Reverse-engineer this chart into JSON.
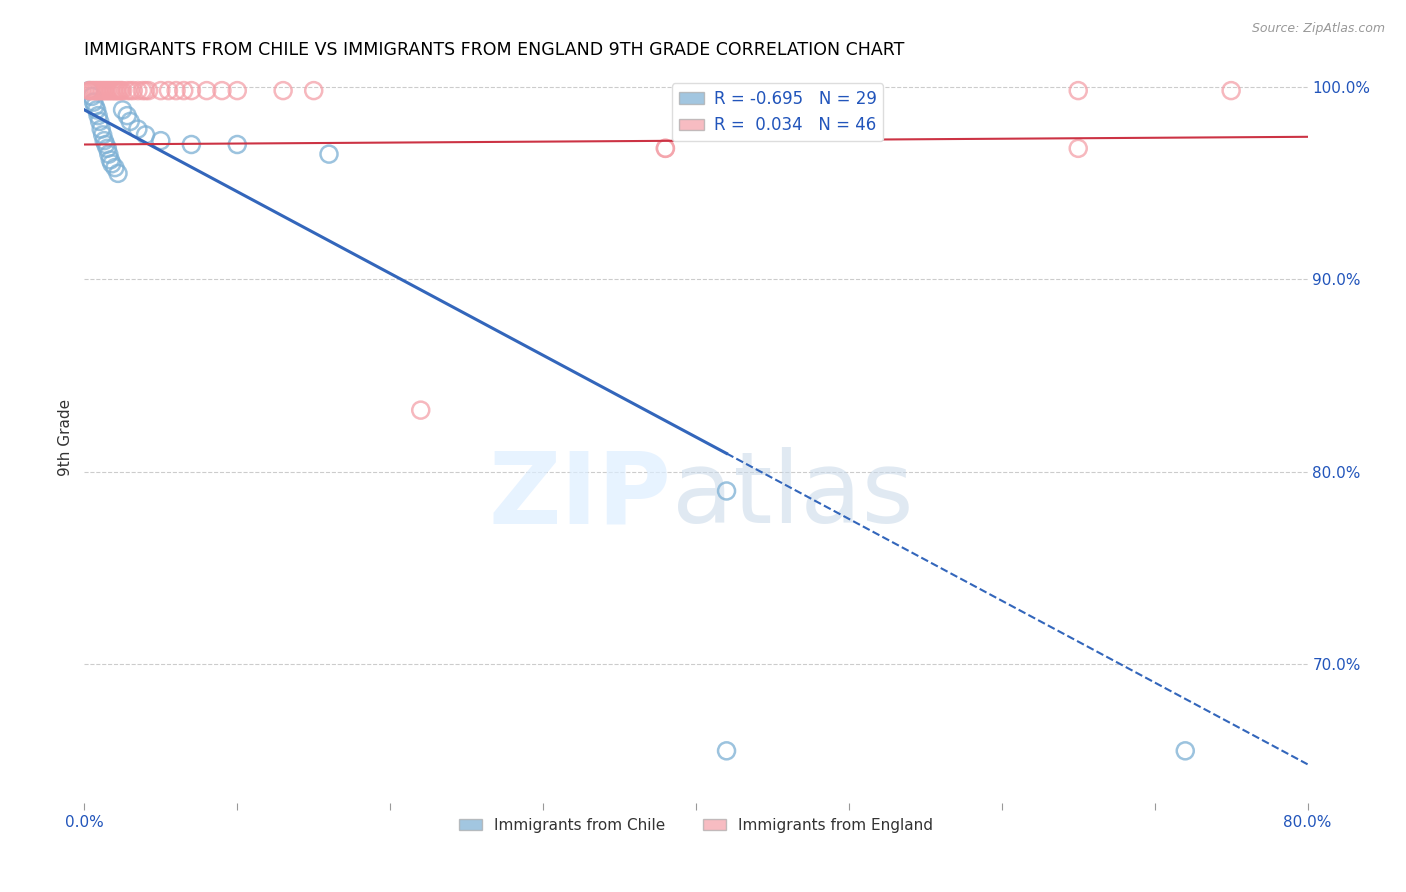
{
  "title": "IMMIGRANTS FROM CHILE VS IMMIGRANTS FROM ENGLAND 9TH GRADE CORRELATION CHART",
  "source": "Source: ZipAtlas.com",
  "ylabel_left": "9th Grade",
  "legend_label_blue": "Immigrants from Chile",
  "legend_label_pink": "Immigrants from England",
  "R_blue": -0.695,
  "N_blue": 29,
  "R_pink": 0.034,
  "N_pink": 46,
  "blue_color": "#7bafd4",
  "pink_color": "#f4a0a8",
  "trend_blue_color": "#3366bb",
  "trend_pink_color": "#cc3344",
  "watermark_zip": "ZIP",
  "watermark_atlas": "atlas",
  "xmin": 0.0,
  "xmax": 0.8,
  "ymin": 0.628,
  "ymax": 1.008,
  "right_yticks": [
    1.0,
    0.9,
    0.8,
    0.7
  ],
  "right_ytick_labels": [
    "100.0%",
    "90.0%",
    "80.0%",
    "70.0%"
  ],
  "xticks": [
    0.0,
    0.1,
    0.2,
    0.3,
    0.4,
    0.5,
    0.6,
    0.7,
    0.8
  ],
  "xtick_labels": [
    "0.0%",
    "",
    "",
    "",
    "",
    "",
    "",
    "",
    "80.0%"
  ],
  "blue_trend_x": [
    0.0,
    0.8
  ],
  "blue_trend_y": [
    0.988,
    0.648
  ],
  "blue_trend_solid_end_x": 0.42,
  "pink_trend_x": [
    0.0,
    0.8
  ],
  "pink_trend_y": [
    0.97,
    0.974
  ],
  "blue_scatter_x": [
    0.003,
    0.005,
    0.006,
    0.007,
    0.008,
    0.009,
    0.01,
    0.011,
    0.012,
    0.013,
    0.014,
    0.015,
    0.016,
    0.017,
    0.018,
    0.02,
    0.022,
    0.025,
    0.028,
    0.03,
    0.035,
    0.04,
    0.05,
    0.07,
    0.1,
    0.16,
    0.42,
    0.42,
    0.72
  ],
  "blue_scatter_y": [
    0.998,
    0.995,
    0.992,
    0.99,
    0.988,
    0.985,
    0.982,
    0.978,
    0.975,
    0.972,
    0.97,
    0.968,
    0.965,
    0.962,
    0.96,
    0.958,
    0.955,
    0.988,
    0.985,
    0.982,
    0.978,
    0.975,
    0.972,
    0.97,
    0.97,
    0.965,
    0.79,
    0.655,
    0.655
  ],
  "pink_scatter_x": [
    0.003,
    0.004,
    0.005,
    0.006,
    0.007,
    0.008,
    0.009,
    0.01,
    0.011,
    0.012,
    0.013,
    0.014,
    0.015,
    0.016,
    0.017,
    0.018,
    0.019,
    0.02,
    0.021,
    0.022,
    0.023,
    0.024,
    0.025,
    0.028,
    0.03,
    0.032,
    0.035,
    0.038,
    0.04,
    0.042,
    0.05,
    0.055,
    0.06,
    0.065,
    0.07,
    0.08,
    0.09,
    0.1,
    0.13,
    0.15,
    0.22,
    0.38,
    0.38,
    0.65,
    0.65,
    0.75
  ],
  "pink_scatter_y": [
    0.998,
    0.998,
    0.998,
    0.998,
    0.998,
    0.998,
    0.998,
    0.998,
    0.998,
    0.998,
    0.998,
    0.998,
    0.998,
    0.998,
    0.998,
    0.998,
    0.998,
    0.998,
    0.998,
    0.998,
    0.998,
    0.998,
    0.998,
    0.998,
    0.998,
    0.998,
    0.998,
    0.998,
    0.998,
    0.998,
    0.998,
    0.998,
    0.998,
    0.998,
    0.998,
    0.998,
    0.998,
    0.998,
    0.998,
    0.998,
    0.832,
    0.968,
    0.968,
    0.998,
    0.968,
    0.998
  ]
}
